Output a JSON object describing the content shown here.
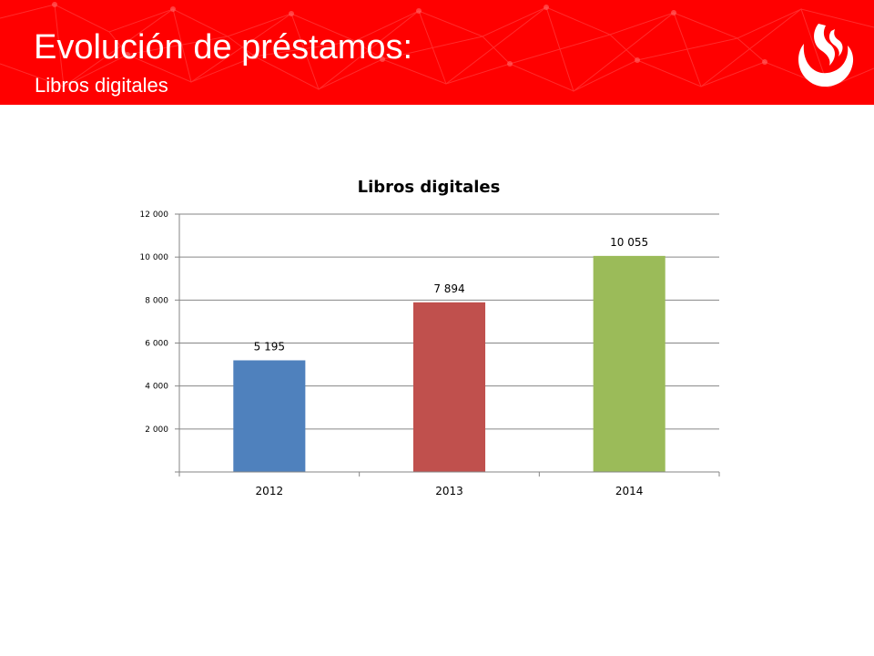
{
  "slide": {
    "title": "Evolución de préstamos:",
    "subtitle": "Libros digitales",
    "header_color": "#ff0000",
    "logo_icon": "university-flame-logo"
  },
  "chart_data": {
    "type": "bar",
    "title": "Libros digitales",
    "categories": [
      "2012",
      "2013",
      "2014"
    ],
    "values": [
      5195,
      7894,
      10055
    ],
    "value_labels": [
      "5 195",
      "7 894",
      "10 055"
    ],
    "bar_colors": [
      "#4f81bd",
      "#c0504d",
      "#9bbb59"
    ],
    "ylim": [
      0,
      12000
    ],
    "yticks": [
      2000,
      4000,
      6000,
      8000,
      10000,
      12000
    ],
    "ytick_labels": [
      "2 000",
      "4 000",
      "6 000",
      "8 000",
      "10 000",
      "12 000"
    ],
    "xlabel": "",
    "ylabel": "",
    "grid": true,
    "legend": "none"
  }
}
